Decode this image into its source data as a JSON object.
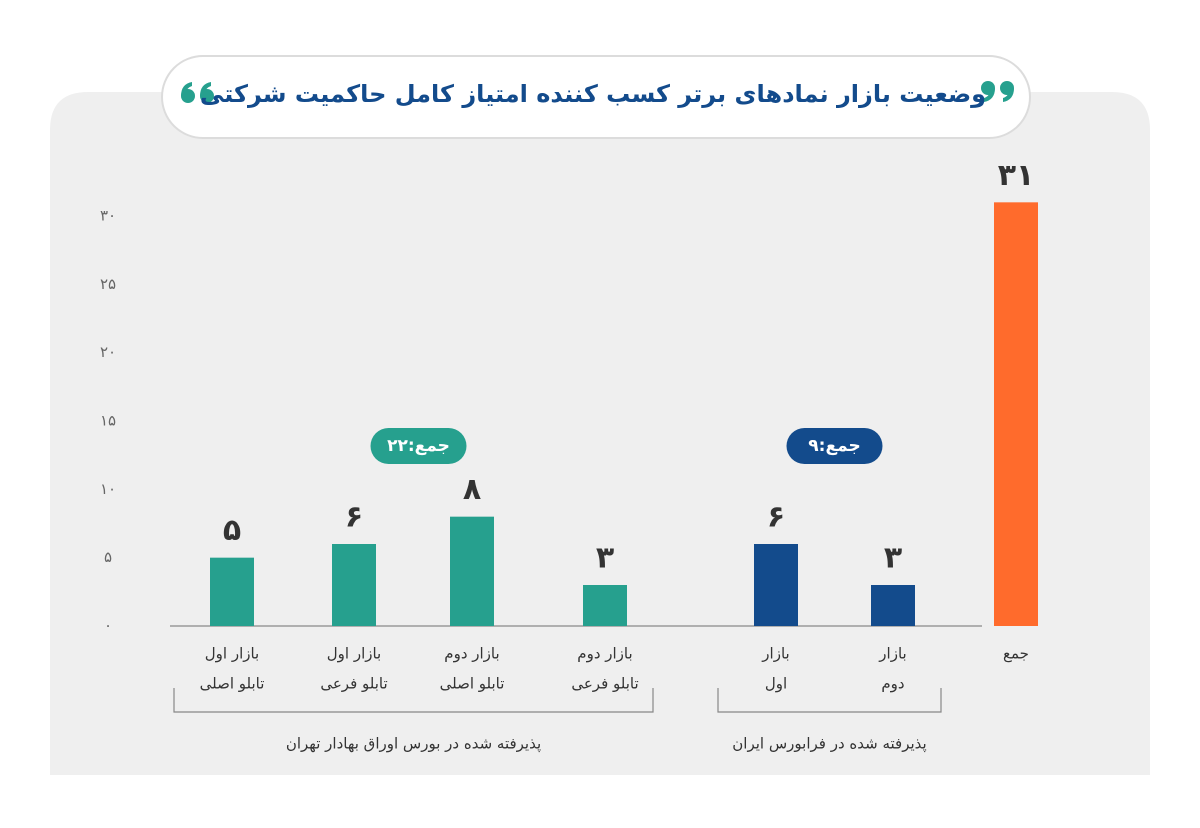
{
  "chart_data": {
    "type": "bar",
    "title": "وضعیت بازار نمادهای برتر کسب کننده امتیاز کامل حاکمیت شرکتی",
    "categories": [
      [
        "بازار اول",
        "تابلو اصلی"
      ],
      [
        "بازار اول",
        "تابلو فرعی"
      ],
      [
        "بازار دوم",
        "تابلو اصلی"
      ],
      [
        "بازار دوم",
        "تابلو فرعی"
      ],
      [
        "بازار",
        "اول"
      ],
      [
        "بازار",
        "دوم"
      ],
      [
        "جمع"
      ]
    ],
    "values": [
      5,
      6,
      8,
      3,
      6,
      3,
      31
    ],
    "value_labels": [
      "۵",
      "۶",
      "۸",
      "۳",
      "۶",
      "۳",
      "۳۱"
    ],
    "colors": [
      "#26a08e",
      "#26a08e",
      "#26a08e",
      "#26a08e",
      "#134b8c",
      "#134b8c",
      "#ff6b2c"
    ],
    "groups": [
      {
        "label": "پذیرفته شده در بورس اوراق بهادار تهران",
        "total": 22,
        "total_label": "جمع:۲۲",
        "color": "#26a08e"
      },
      {
        "label": "پذیرفته شده در فرابورس ایران",
        "total": 9,
        "total_label": "جمع:۹",
        "color": "#134b8c"
      }
    ],
    "ylim": [
      0,
      30
    ],
    "yticks": [
      {
        "value": 0,
        "label": "۰"
      },
      {
        "value": 5,
        "label": "۵"
      },
      {
        "value": 10,
        "label": "۱۰"
      },
      {
        "value": 15,
        "label": "۱۵"
      },
      {
        "value": 20,
        "label": "۲۰"
      },
      {
        "value": 25,
        "label": "۲۵"
      },
      {
        "value": 30,
        "label": "۳۰"
      }
    ],
    "grid": false
  }
}
